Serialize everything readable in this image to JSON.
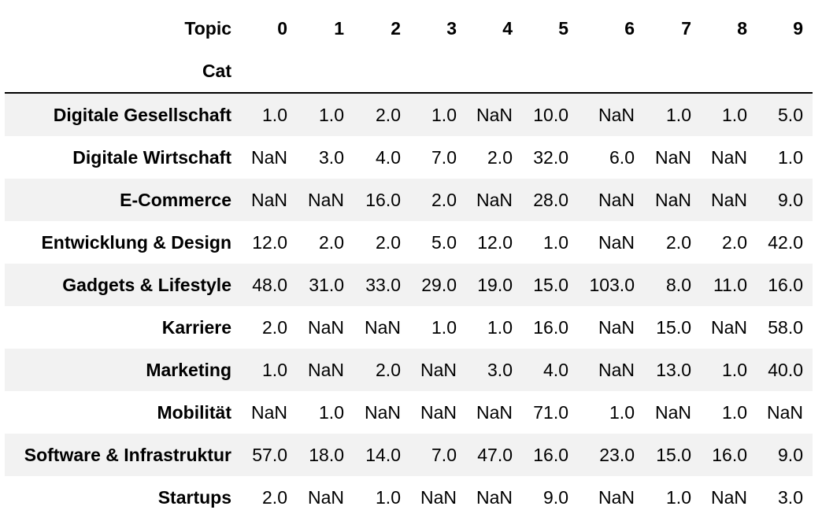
{
  "table": {
    "columns_name": "Topic",
    "index_name": "Cat",
    "columns": [
      "0",
      "1",
      "2",
      "3",
      "4",
      "5",
      "6",
      "7",
      "8",
      "9"
    ],
    "rows": [
      {
        "label": "Digitale Gesellschaft",
        "values": [
          "1.0",
          "1.0",
          "2.0",
          "1.0",
          "NaN",
          "10.0",
          "NaN",
          "1.0",
          "1.0",
          "5.0"
        ]
      },
      {
        "label": "Digitale Wirtschaft",
        "values": [
          "NaN",
          "3.0",
          "4.0",
          "7.0",
          "2.0",
          "32.0",
          "6.0",
          "NaN",
          "NaN",
          "1.0"
        ]
      },
      {
        "label": "E-Commerce",
        "values": [
          "NaN",
          "NaN",
          "16.0",
          "2.0",
          "NaN",
          "28.0",
          "NaN",
          "NaN",
          "NaN",
          "9.0"
        ]
      },
      {
        "label": "Entwicklung & Design",
        "values": [
          "12.0",
          "2.0",
          "2.0",
          "5.0",
          "12.0",
          "1.0",
          "NaN",
          "2.0",
          "2.0",
          "42.0"
        ]
      },
      {
        "label": "Gadgets & Lifestyle",
        "values": [
          "48.0",
          "31.0",
          "33.0",
          "29.0",
          "19.0",
          "15.0",
          "103.0",
          "8.0",
          "11.0",
          "16.0"
        ]
      },
      {
        "label": "Karriere",
        "values": [
          "2.0",
          "NaN",
          "NaN",
          "1.0",
          "1.0",
          "16.0",
          "NaN",
          "15.0",
          "NaN",
          "58.0"
        ]
      },
      {
        "label": "Marketing",
        "values": [
          "1.0",
          "NaN",
          "2.0",
          "NaN",
          "3.0",
          "4.0",
          "NaN",
          "13.0",
          "1.0",
          "40.0"
        ]
      },
      {
        "label": "Mobilität",
        "values": [
          "NaN",
          "1.0",
          "NaN",
          "NaN",
          "NaN",
          "71.0",
          "1.0",
          "NaN",
          "1.0",
          "NaN"
        ]
      },
      {
        "label": "Software & Infrastruktur",
        "values": [
          "57.0",
          "18.0",
          "14.0",
          "7.0",
          "47.0",
          "16.0",
          "23.0",
          "15.0",
          "16.0",
          "9.0"
        ]
      },
      {
        "label": "Startups",
        "values": [
          "2.0",
          "NaN",
          "1.0",
          "NaN",
          "NaN",
          "9.0",
          "NaN",
          "1.0",
          "NaN",
          "3.0"
        ]
      }
    ]
  },
  "colors": {
    "stripe": "#f2f2f2",
    "background": "#ffffff",
    "text": "#000000",
    "rule": "#000000"
  }
}
